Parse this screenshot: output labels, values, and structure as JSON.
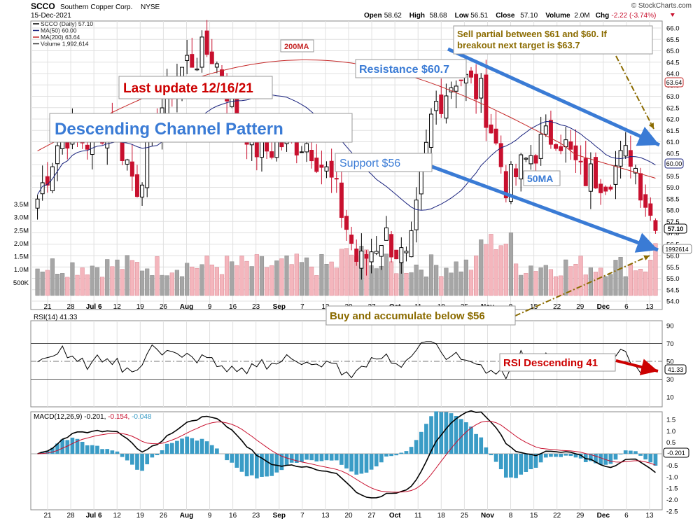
{
  "header": {
    "symbol": "SCCO",
    "company": "Southern Copper Corp.",
    "exchange": "NYSE",
    "date": "15-Dec-2021",
    "ohlc": [
      {
        "label": "Open",
        "value": "58.62"
      },
      {
        "label": "High",
        "value": "58.68"
      },
      {
        "label": "Low",
        "value": "56.51"
      },
      {
        "label": "Close",
        "value": "57.10"
      },
      {
        "label": "Volume",
        "value": "2.0M"
      },
      {
        "label": "Chg",
        "value": "-2.22 (-3.74%)"
      }
    ],
    "watermark": "© StockCharts.com"
  },
  "colors": {
    "up_candle": "#000000",
    "down_candle": "#c8102e",
    "ma50": "#1a237e",
    "ma200": "#c62828",
    "volume_up": "#a6a6a6",
    "volume_down": "#f4b6bd",
    "annotation_blue": "#3a7bd5",
    "annotation_red": "#cc0000",
    "annotation_olive": "#8b6b00",
    "macd_hist": "#3a9cc6",
    "grid": "#e0e0e0"
  },
  "price_panel": {
    "legend": [
      {
        "text": "SCCO (Daily) 57.10",
        "color": "#000000"
      },
      {
        "text": "MA(50) 60.00",
        "color": "#1a237e"
      },
      {
        "text": "MA(200) 63.64",
        "color": "#c62828"
      },
      {
        "text": "Volume 1,992,614",
        "color": "#333333"
      }
    ],
    "price_ticks": [
      "66.0",
      "65.5",
      "65.0",
      "64.5",
      "64.0",
      "63.5",
      "63.0",
      "62.5",
      "62.0",
      "61.5",
      "61.0",
      "60.5",
      "60.0",
      "59.5",
      "59.0",
      "58.5",
      "58.0",
      "57.5",
      "57.0",
      "56.5",
      "56.0",
      "55.5",
      "55.0",
      "54.5",
      "54.0"
    ],
    "volume_ticks": [
      "3.5M",
      "3.0M",
      "2.5M",
      "2.0M",
      "1.5M",
      "1.0M",
      "500K"
    ],
    "badges": {
      "ma200": "63.64",
      "ma50": "60.00",
      "close": "57.10",
      "volume": "1992614"
    },
    "x_labels": [
      "21",
      "28",
      "Jul 6",
      "12",
      "19",
      "26",
      "Aug",
      "9",
      "16",
      "23",
      "Sep",
      "7",
      "13",
      "20",
      "27",
      "Oct",
      "11",
      "18",
      "25",
      "Nov",
      "8",
      "15",
      "22",
      "29",
      "Dec",
      "6",
      "13"
    ]
  },
  "annotations": {
    "title": "Descending Channel Pattern",
    "last_update": "Last update 12/16/21",
    "resistance": "Resistance $60.7",
    "support": "Support $56",
    "ma200_label": "200MA",
    "ma50_label": "50MA",
    "sell_note": "Sell partial between $61 and $60. If breakout next target is $63.7",
    "buy_note": "Buy and accumulate below $56",
    "rsi_note": "RSI Descending 41"
  },
  "rsi_panel": {
    "legend": "RSI(14) 41.33",
    "ticks": [
      "90",
      "70",
      "50",
      "30",
      "10"
    ],
    "badge": "41.33"
  },
  "macd_panel": {
    "legend_prefix": "MACD(12,26,9)",
    "legend_macd": "-0.201,",
    "legend_signal": "-0.154,",
    "legend_hist": "-0.048",
    "ticks": [
      "1.5",
      "1.0",
      "0.5",
      "0.0",
      "-0.5",
      "-1.0",
      "-1.5",
      "-2.0",
      "-2.5"
    ],
    "badge": "-0.201"
  },
  "chart_data": {
    "type": "candlestick",
    "title": "SCCO Southern Copper Corp. NYSE",
    "x": [
      "Jun 21",
      "Jun 28",
      "Jul 6",
      "Jul 12",
      "Jul 19",
      "Jul 26",
      "Aug 2",
      "Aug 9",
      "Aug 16",
      "Aug 23",
      "Aug 30",
      "Sep 7",
      "Sep 13",
      "Sep 20",
      "Sep 27",
      "Oct 4",
      "Oct 11",
      "Oct 18",
      "Oct 25",
      "Nov 1",
      "Nov 8",
      "Nov 15",
      "Nov 22",
      "Nov 29",
      "Dec 6",
      "Dec 13"
    ],
    "close_weekly_approx": [
      58.5,
      61.5,
      61.0,
      62.0,
      59.0,
      62.5,
      64.5,
      65.0,
      62.5,
      60.5,
      61.0,
      61.0,
      59.0,
      55.5,
      57.0,
      55.5,
      62.5,
      64.0,
      63.0,
      59.0,
      60.5,
      61.5,
      59.5,
      59.5,
      60.5,
      57.1
    ],
    "ma50_end": 60.0,
    "ma200_end": 63.64,
    "volume_last": 1992614,
    "ylim": [
      54.0,
      66.0
    ],
    "rsi": {
      "value": 41.33,
      "levels": [
        30,
        70
      ],
      "ylim": [
        10,
        90
      ]
    },
    "macd": {
      "macd": -0.201,
      "signal": -0.154,
      "histogram": -0.048,
      "ylim": [
        -2.5,
        1.5
      ]
    }
  }
}
